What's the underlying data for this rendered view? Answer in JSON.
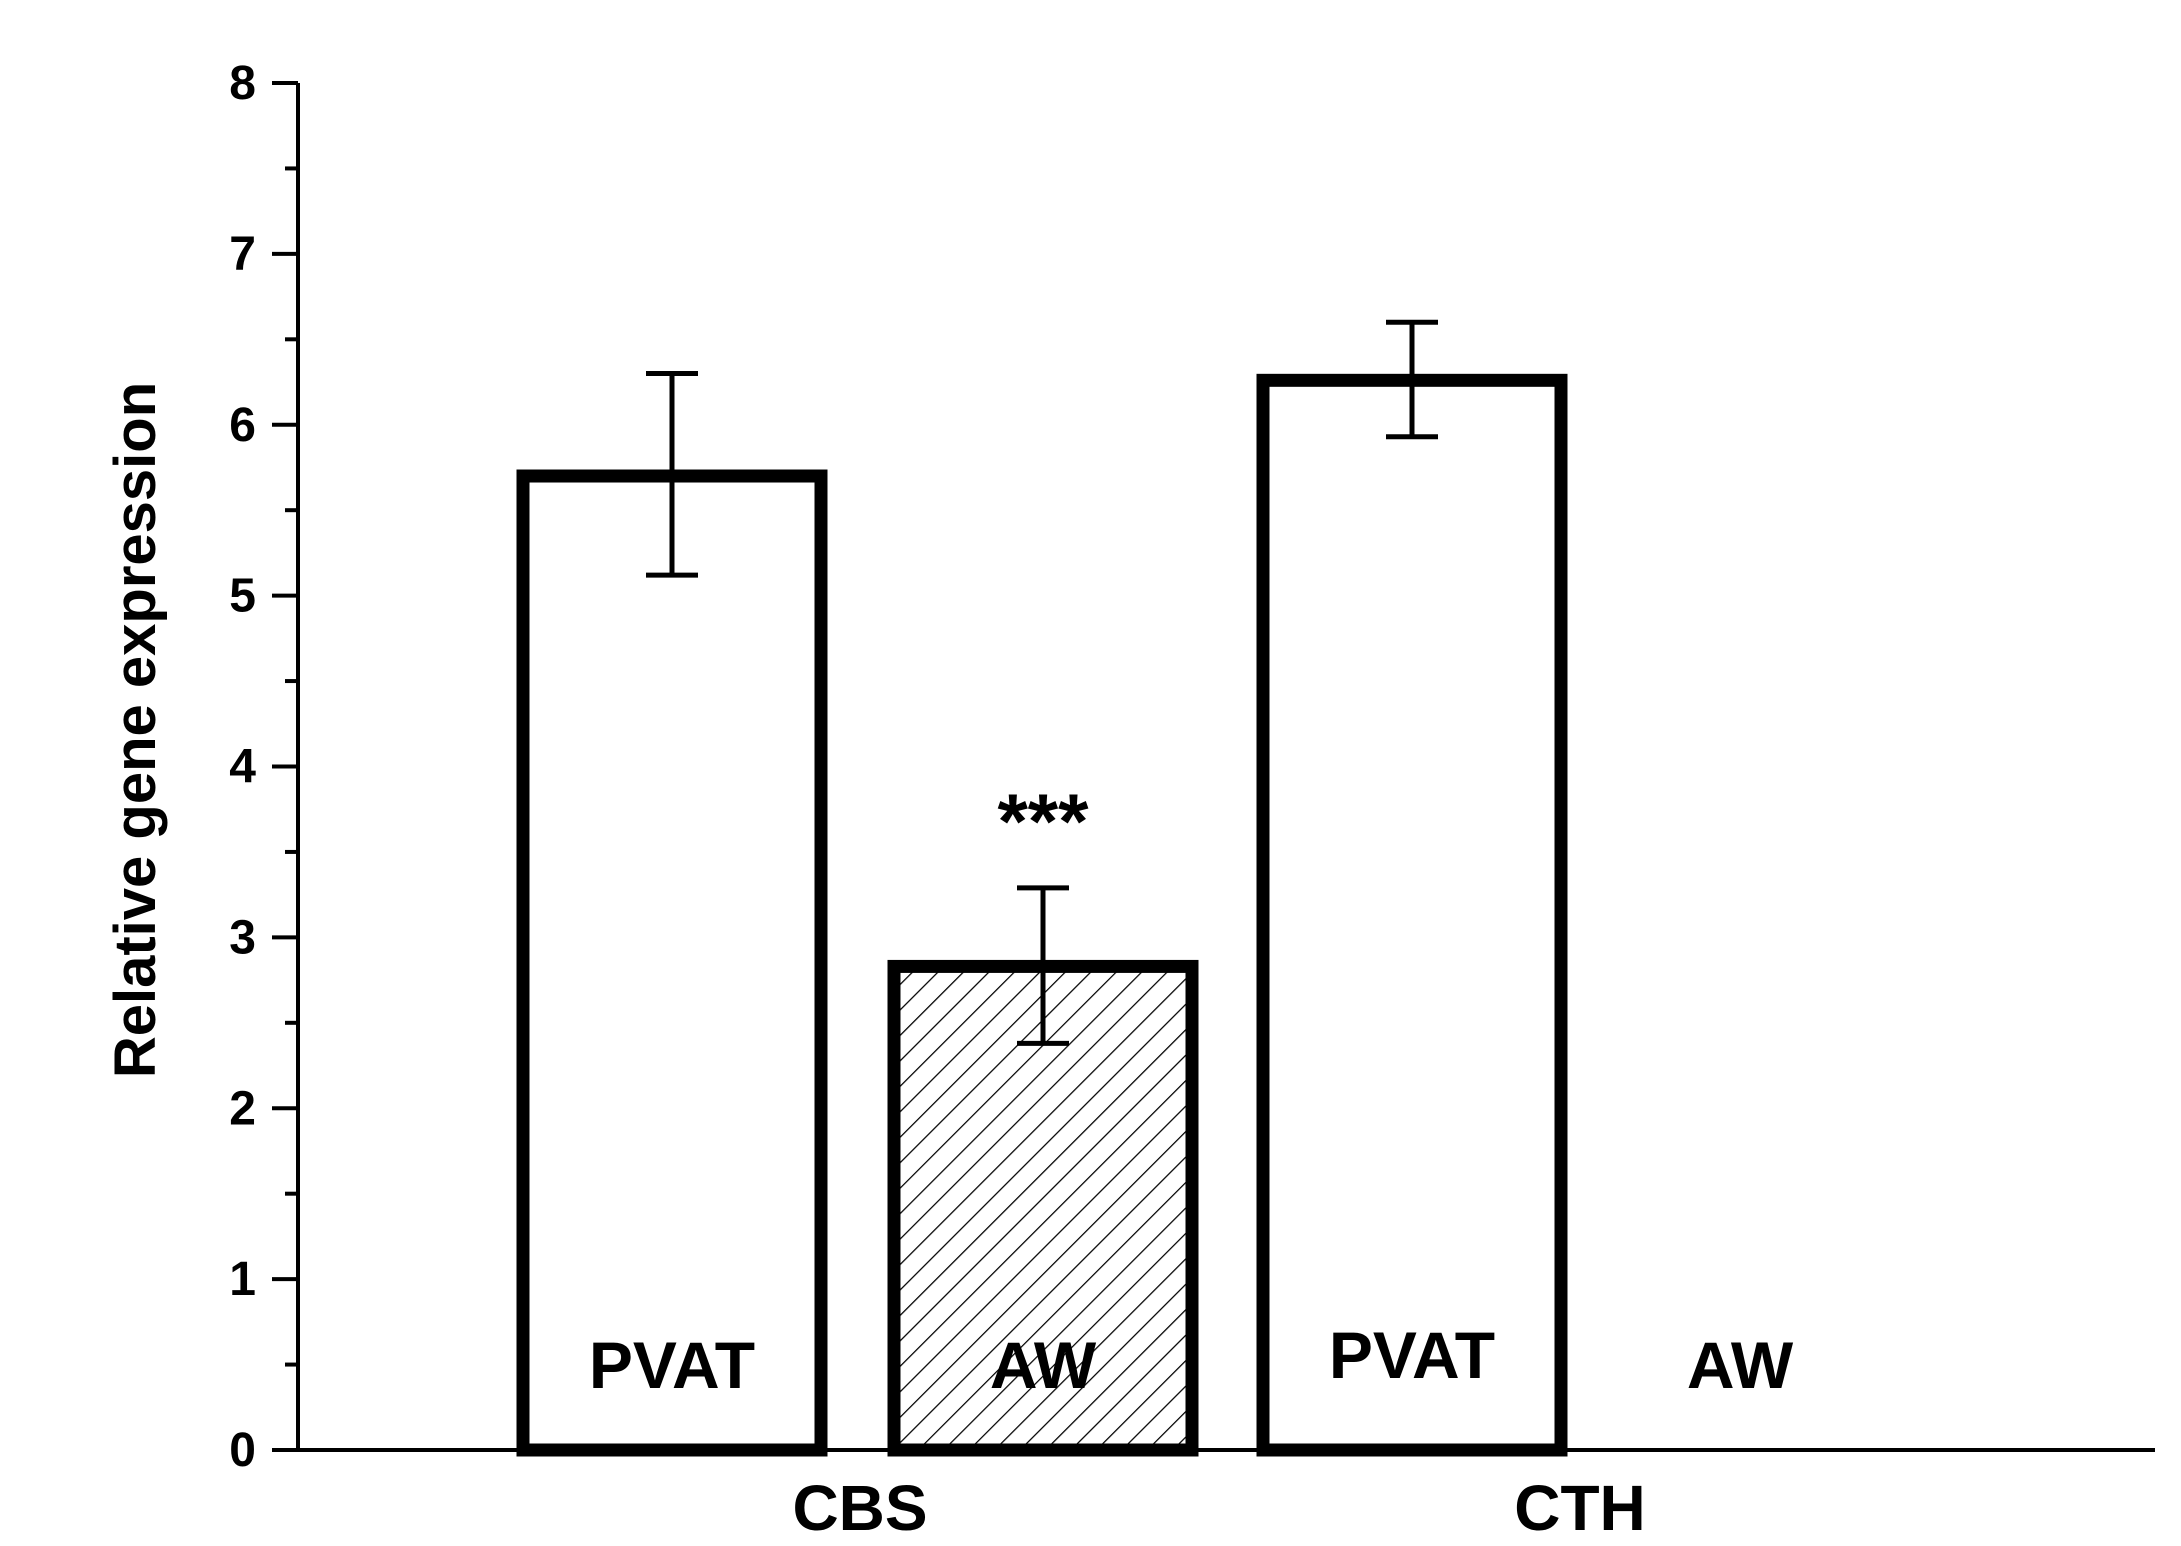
{
  "chart_data": {
    "type": "bar",
    "title": "",
    "xlabel": "",
    "ylabel": "Relative gene expression",
    "ylim": [
      0,
      8
    ],
    "y_major_ticks": [
      0,
      1,
      2,
      3,
      4,
      5,
      6,
      7,
      8
    ],
    "y_minor_step": 0.5,
    "grid": false,
    "legend": "none",
    "groups": [
      {
        "label": "CBS",
        "bars": [
          {
            "label": "PVAT",
            "value": 5.7,
            "error_low": 5.12,
            "error_high": 6.3,
            "fill": "white",
            "annotation": ""
          },
          {
            "label": "AW",
            "value": 2.83,
            "error_low": 2.38,
            "error_high": 3.29,
            "fill": "hatched",
            "annotation": "***"
          }
        ]
      },
      {
        "label": "CTH",
        "bars": [
          {
            "label": "PVAT",
            "value": 6.26,
            "error_low": 5.93,
            "error_high": 6.6,
            "fill": "white",
            "annotation": ""
          },
          {
            "label": "AW",
            "value": 0,
            "error_low": null,
            "error_high": null,
            "fill": "none",
            "annotation": ""
          }
        ]
      }
    ],
    "colors": {
      "stroke": "#000000",
      "background": "#ffffff"
    }
  }
}
